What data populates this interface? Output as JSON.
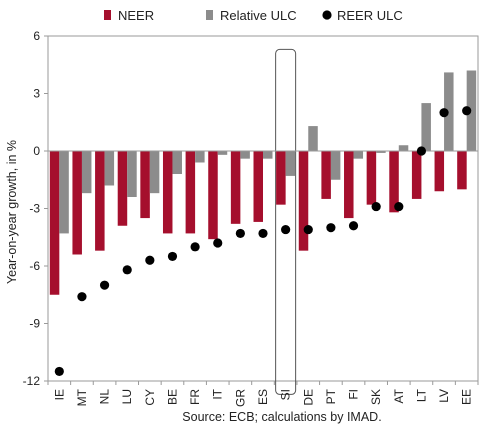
{
  "chart_data": {
    "type": "bar",
    "ylabel": "Year-on-year growth, in %",
    "source": "Source: ECB; calculations by IMAD.",
    "ylim": [
      -12,
      6
    ],
    "yticks": [
      "6",
      "3",
      "0",
      "-3",
      "-6",
      "-9",
      "-12"
    ],
    "ytick_values": [
      6,
      3,
      0,
      -3,
      -6,
      -9,
      -12
    ],
    "categories": [
      "IE",
      "MT",
      "NL",
      "LU",
      "CY",
      "BE",
      "FR",
      "IT",
      "GR",
      "ES",
      "SI",
      "DE",
      "PT",
      "FI",
      "SK",
      "AT",
      "LT",
      "LV",
      "EE"
    ],
    "highlight_category": "SI",
    "series": [
      {
        "name": "NEER",
        "type": "bar",
        "color": "#a50f2d",
        "values": [
          -7.5,
          -5.4,
          -5.2,
          -3.9,
          -3.5,
          -4.3,
          -4.3,
          -4.6,
          -3.8,
          -3.7,
          -2.8,
          -5.2,
          -2.5,
          -3.5,
          -2.8,
          -3.2,
          -2.5,
          -2.1,
          -2.0
        ]
      },
      {
        "name": "Relative ULC",
        "type": "bar",
        "color": "#8c8c8c",
        "values": [
          -4.3,
          -2.2,
          -1.8,
          -2.4,
          -2.2,
          -1.2,
          -0.6,
          -0.2,
          -0.4,
          -0.4,
          -1.3,
          1.3,
          -1.5,
          -0.4,
          -0.1,
          0.3,
          2.5,
          4.1,
          4.2
        ]
      },
      {
        "name": "REER ULC",
        "type": "scatter",
        "color": "#000000",
        "values": [
          -11.5,
          -7.6,
          -7.0,
          -6.2,
          -5.7,
          -5.5,
          -5.0,
          -4.8,
          -4.3,
          -4.3,
          -4.1,
          -4.1,
          -4.0,
          -3.9,
          -2.9,
          -2.9,
          0.0,
          2.0,
          2.1
        ]
      }
    ],
    "legend": {
      "position": "top"
    }
  }
}
